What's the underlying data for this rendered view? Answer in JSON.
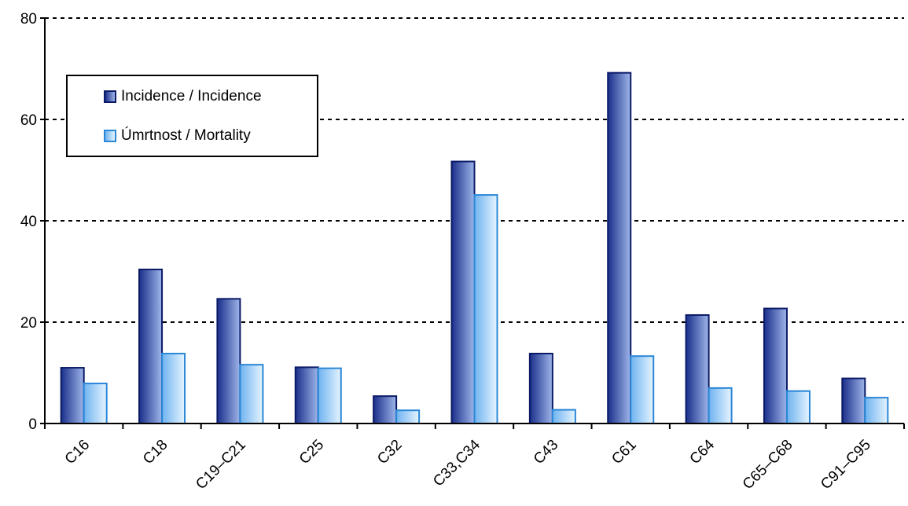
{
  "chart_data": {
    "type": "bar",
    "title": "",
    "xlabel": "",
    "ylabel": "",
    "ylim": [
      0,
      80
    ],
    "yticks": [
      0,
      20,
      40,
      60,
      80
    ],
    "grid": true,
    "legend_position": "top-left",
    "categories": [
      "C16",
      "C18",
      "C19–C21",
      "C25",
      "C32",
      "C33,C34",
      "C43",
      "C61",
      "C64",
      "C65–C68",
      "C91–C95"
    ],
    "series": [
      {
        "name": "Incidence / Incidence",
        "values": [
          11.0,
          30.4,
          24.6,
          11.1,
          5.4,
          51.7,
          13.8,
          69.2,
          21.4,
          22.7,
          8.9
        ]
      },
      {
        "name": "Úmrtnost / Mortality",
        "values": [
          7.9,
          13.8,
          11.6,
          10.9,
          2.6,
          45.1,
          2.7,
          13.3,
          7.0,
          6.4,
          5.1
        ]
      }
    ],
    "colors": {
      "incidence_dark": "#1a2f8a",
      "incidence_light": "#9fb6ea",
      "incidence_border": "#0b1a66",
      "mortality_dark": "#6fb3f0",
      "mortality_light": "#e6f4ff",
      "mortality_border": "#2a86d6"
    }
  }
}
